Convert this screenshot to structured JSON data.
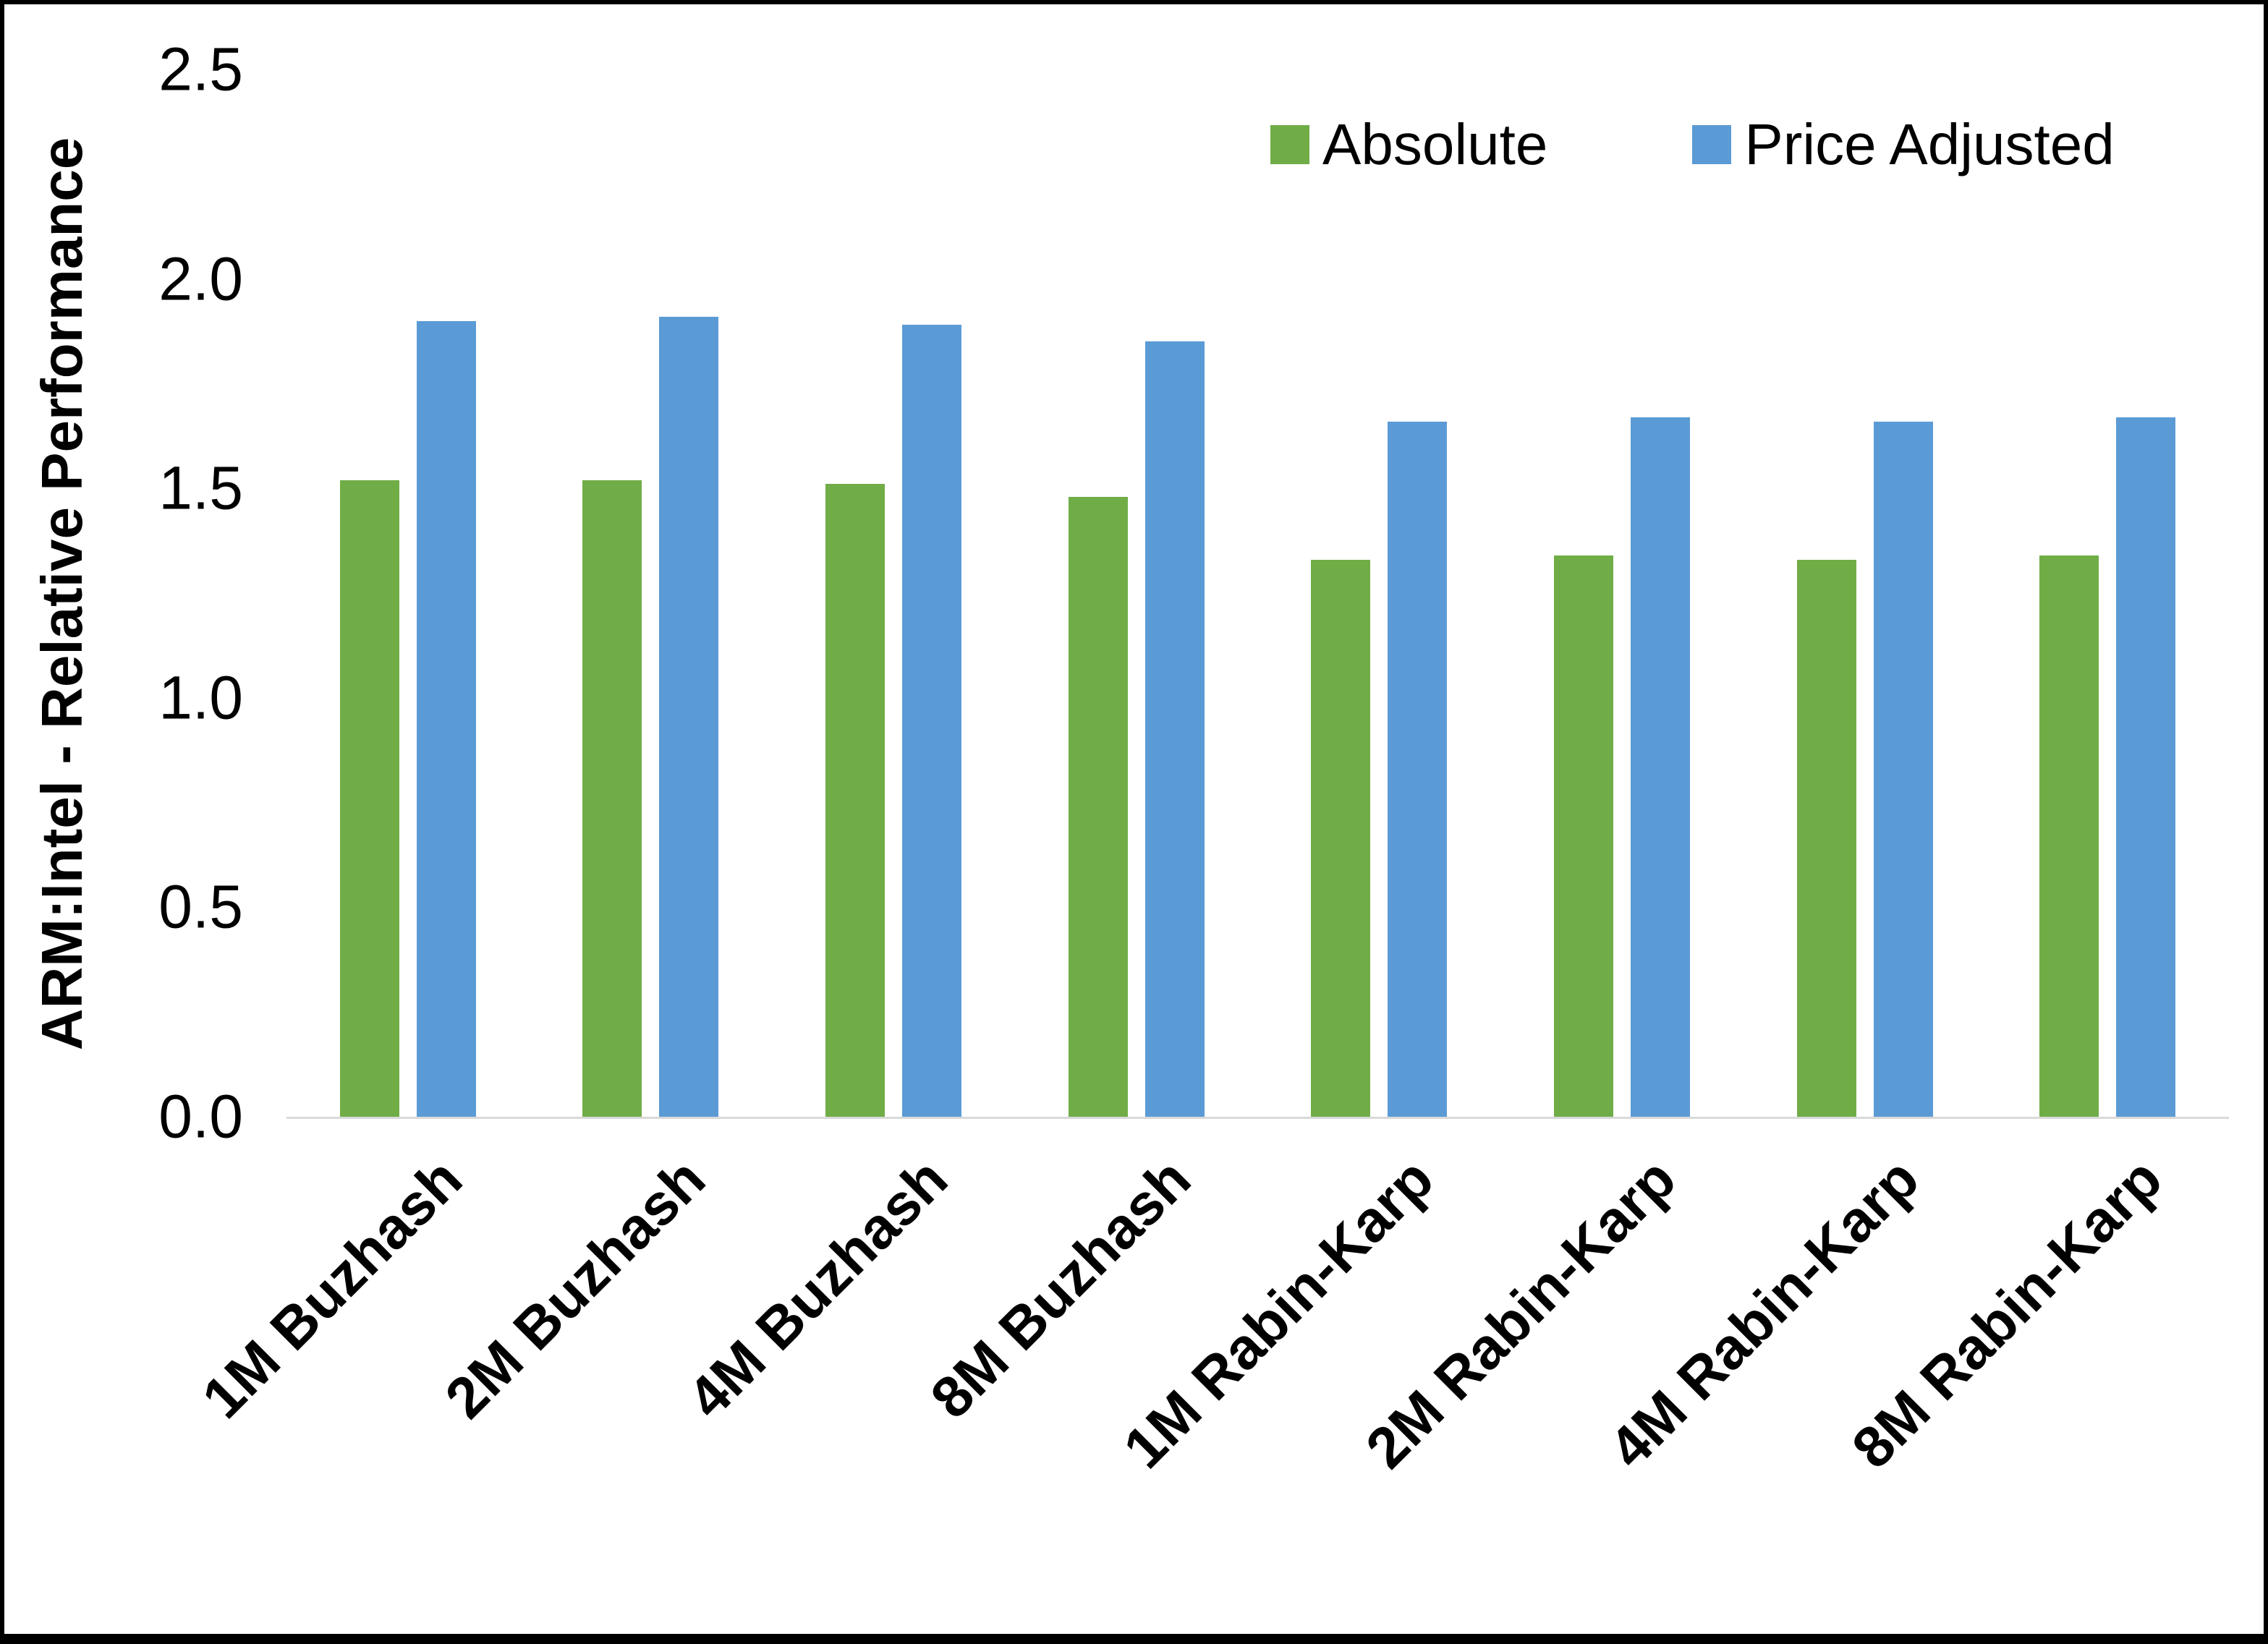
{
  "chart_data": {
    "type": "bar",
    "title": "",
    "xlabel": "",
    "ylabel": "ARM:Intel - Relative Performance",
    "ylim": [
      0,
      2.5
    ],
    "yticks": [
      "0.0",
      "0.5",
      "1.0",
      "1.5",
      "2.0",
      "2.5"
    ],
    "grid": false,
    "legend_position": "top-right",
    "axis_line_color": "#D9D9D9",
    "categories": [
      "1M Buzhash",
      "2M Buzhash",
      "4M Buzhash",
      "8M Buzhash",
      "1M Rabin-Karp",
      "2M Rabin-Karp",
      "4M Rabin-Karp",
      "8M Rabin-Karp"
    ],
    "series": [
      {
        "name": "Absolute",
        "color": "#70AD47",
        "values": [
          1.52,
          1.52,
          1.51,
          1.48,
          1.33,
          1.34,
          1.33,
          1.34
        ]
      },
      {
        "name": "Price Adjusted",
        "color": "#5B9BD5",
        "values": [
          1.9,
          1.91,
          1.89,
          1.85,
          1.66,
          1.67,
          1.66,
          1.67
        ]
      }
    ]
  }
}
